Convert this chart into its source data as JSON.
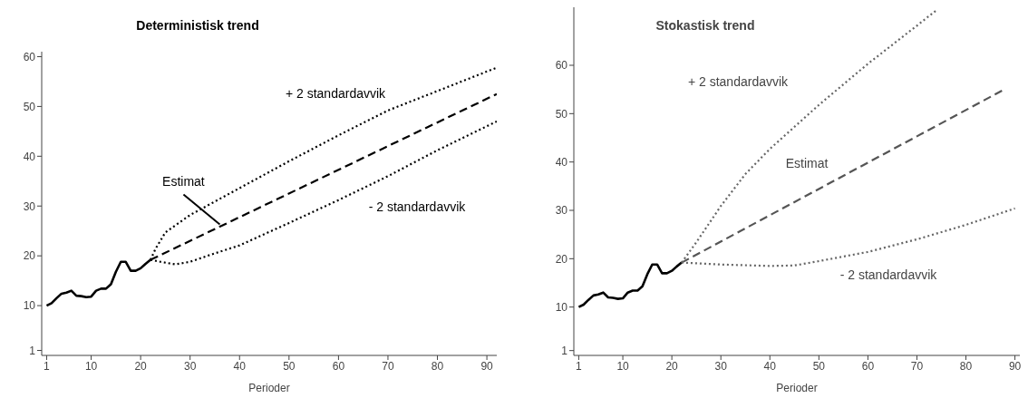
{
  "chart_data": [
    {
      "type": "line",
      "title": "Deterministisk trend",
      "xlabel": "Perioder",
      "xlim": [
        0,
        92
      ],
      "xticks": [
        1,
        10,
        20,
        30,
        40,
        50,
        60,
        70,
        80,
        90
      ],
      "ylim": [
        0,
        61
      ],
      "yticks": [
        1,
        10,
        20,
        30,
        40,
        50,
        60
      ],
      "marker": "none",
      "series": [
        {
          "color": "#000000",
          "line_style": "solid",
          "x": [
            1,
            2,
            3,
            4,
            5,
            6,
            7,
            8,
            9,
            10,
            11,
            12,
            13,
            14,
            15,
            16,
            17,
            18,
            19,
            20,
            21,
            22
          ],
          "values": [
            10,
            10.5,
            11.5,
            12.4,
            12.6,
            13,
            12,
            11.9,
            11.7,
            11.8,
            13,
            13.4,
            13.4,
            14.3,
            16.8,
            18.8,
            18.8,
            17,
            17,
            17.5,
            18.4,
            19.2
          ]
        },
        {
          "color": "#000000",
          "line_style": "dashed",
          "x": [
            22,
            92
          ],
          "values": [
            19.2,
            52.5
          ]
        },
        {
          "color": "#000000",
          "line_style": "dotted",
          "x": [
            22,
            23,
            25,
            30,
            40,
            50,
            60,
            70,
            80,
            92
          ],
          "values": [
            19.2,
            21.4,
            24.7,
            28.2,
            33.6,
            39,
            44.2,
            49.2,
            53.1,
            57.8
          ]
        },
        {
          "color": "#000000",
          "line_style": "dotted",
          "x": [
            22,
            24,
            27,
            30,
            35,
            40,
            50,
            60,
            70,
            80,
            92
          ],
          "values": [
            19.2,
            18.8,
            18.3,
            18.8,
            20.5,
            22.1,
            26.6,
            31.2,
            36,
            41.2,
            47
          ]
        }
      ],
      "annotations": [
        "+ 2 standardavvik",
        {
          "text": "Estimat",
          "x": 36,
          "y": 26.3
        },
        "- 2 standardavvik"
      ]
    },
    {
      "type": "line",
      "title": "Stokastisk trend",
      "xlabel": "Perioder",
      "xlim": [
        0,
        91
      ],
      "xticks": [
        1,
        10,
        20,
        30,
        40,
        50,
        60,
        70,
        80,
        90
      ],
      "ylim": [
        0,
        72
      ],
      "yticks": [
        1,
        10,
        20,
        30,
        40,
        50,
        60
      ],
      "marker": "none",
      "series": [
        {
          "color": "#000000",
          "line_style": "solid",
          "x": [
            1,
            2,
            3,
            4,
            5,
            6,
            7,
            8,
            9,
            10,
            11,
            12,
            13,
            14,
            15,
            16,
            17,
            18,
            19,
            20,
            21,
            22
          ],
          "values": [
            10,
            10.5,
            11.5,
            12.4,
            12.6,
            13,
            12,
            11.9,
            11.7,
            11.8,
            13,
            13.4,
            13.4,
            14.3,
            16.8,
            18.8,
            18.8,
            17,
            17,
            17.5,
            18.4,
            19.2
          ]
        },
        {
          "color": "#555555",
          "line_style": "dashed",
          "x": [
            22,
            88
          ],
          "values": [
            19.2,
            55.1
          ]
        },
        {
          "color": "#666666",
          "line_style": "dotted",
          "x": [
            22,
            25,
            30,
            35,
            40,
            50,
            60,
            70,
            74
          ],
          "values": [
            19.2,
            23.4,
            30.9,
            37.5,
            42.7,
            51.8,
            60.3,
            68.2,
            71.4
          ]
        },
        {
          "color": "#666666",
          "line_style": "dotted",
          "x": [
            22,
            30,
            40,
            45,
            50,
            60,
            70,
            80,
            90
          ],
          "values": [
            19.2,
            18.8,
            18.5,
            18.6,
            19.5,
            21.4,
            24,
            27,
            30.4
          ]
        }
      ],
      "annotations": [
        "+ 2 standardavvik",
        "Estimat",
        "- 2 standardavvik"
      ]
    }
  ]
}
